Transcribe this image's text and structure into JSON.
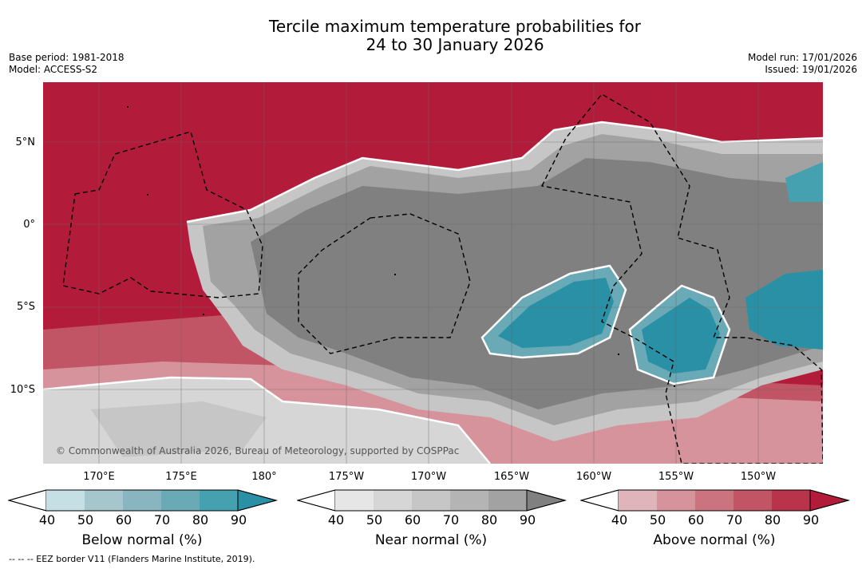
{
  "title_line1": "Tercile maximum temperature probabilities for",
  "title_line2": "24 to 30 January 2026",
  "meta_left": [
    "Base period: 1981-2018",
    "Model: ACCESS-S2"
  ],
  "meta_right": [
    "Model run: 17/01/2026",
    "Issued: 19/01/2026"
  ],
  "lat_labels": [
    "5°N",
    "0°",
    "5°S",
    "10°S"
  ],
  "lon_labels": [
    "170°E",
    "175°E",
    "180°",
    "175°W",
    "170°W",
    "165°W",
    "160°W",
    "155°W",
    "150°W"
  ],
  "copyright": "© Commonwealth of Australia 2026, Bureau of Meteorology, supported by COSPPac",
  "colorbars": [
    {
      "label": "Below normal (%)",
      "ticks": [
        "40",
        "50",
        "60",
        "70",
        "80",
        "90"
      ],
      "colors": [
        "#ffffff",
        "#c5dfe4",
        "#a5c6cc",
        "#88b5bf",
        "#6aa9b6",
        "#45a0b0",
        "#2a90a6"
      ]
    },
    {
      "label": "Near normal (%)",
      "ticks": [
        "40",
        "50",
        "60",
        "70",
        "80",
        "90"
      ],
      "colors": [
        "#ffffff",
        "#e6e6e6",
        "#d6d6d6",
        "#c6c6c6",
        "#b4b4b4",
        "#a2a2a2",
        "#808080"
      ]
    },
    {
      "label": "Above normal (%)",
      "ticks": [
        "40",
        "50",
        "60",
        "70",
        "80",
        "90"
      ],
      "colors": [
        "#ffffff",
        "#e0b4bb",
        "#d6939c",
        "#cb7480",
        "#c25565",
        "#b9334a",
        "#b21c3a"
      ]
    }
  ],
  "footer": "--  --  -- EEZ border V11 (Flanders Marine Institute, 2019)."
}
